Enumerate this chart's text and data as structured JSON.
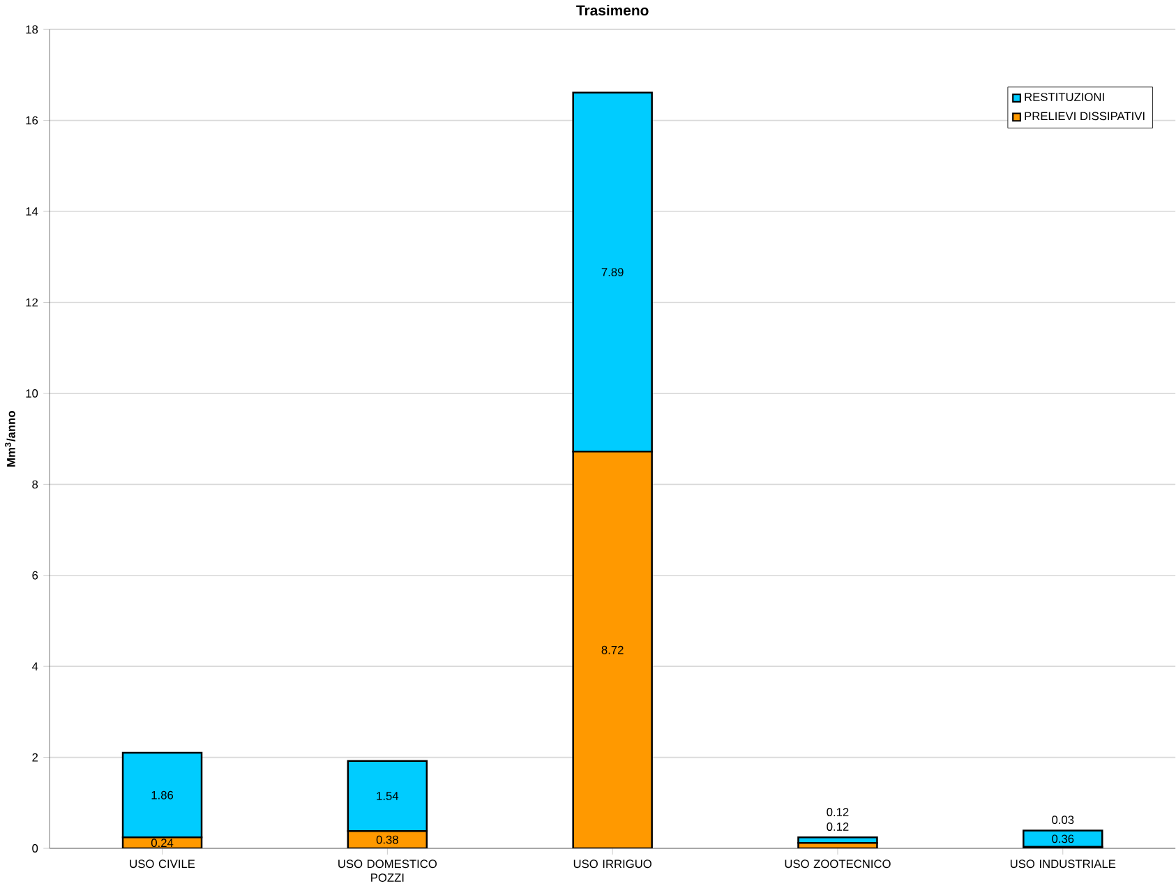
{
  "chart_data": {
    "type": "bar",
    "title": "Trasimeno",
    "ylabel": "Mm$^{3}$/anno",
    "categories": [
      "USO CIVILE",
      "USO DOMESTICO POZZI",
      "USO IRRIGUO",
      "USO ZOOTECNICO",
      "USO INDUSTRIALE"
    ],
    "stacked": true,
    "series": [
      {
        "name": "PRELIEVI DISSIPATIVI",
        "color": "#ff9900",
        "values": [
          0.24,
          0.38,
          8.72,
          0.12,
          0.03
        ]
      },
      {
        "name": "RESTITUZIONI",
        "color": "#00ccff",
        "values": [
          1.86,
          1.54,
          7.89,
          0.12,
          0.36
        ]
      }
    ],
    "ylim": [
      0,
      18
    ],
    "yticks": [
      0,
      2,
      4,
      6,
      8,
      10,
      12,
      14,
      16,
      18
    ],
    "grid": "y",
    "legend": "top right",
    "data_labels": true
  }
}
